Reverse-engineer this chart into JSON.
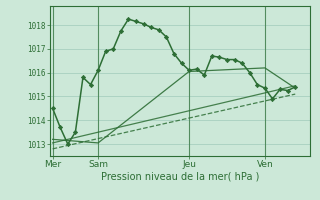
{
  "background_color": "#cce8d8",
  "grid_color": "#a8cfc0",
  "line_color": "#2d6e35",
  "marker_color": "#2d6e35",
  "title": "Pression niveau de la mer( hPa )",
  "ylim": [
    1012.5,
    1018.8
  ],
  "yticks": [
    1013,
    1014,
    1015,
    1016,
    1017,
    1018
  ],
  "day_labels": [
    "Mer",
    "Sam",
    "Jeu",
    "Ven"
  ],
  "day_positions": [
    0,
    3,
    9,
    14
  ],
  "xlim": [
    -0.2,
    17.0
  ],
  "series1_x": [
    0,
    0.5,
    1,
    1.5,
    2,
    2.5,
    3,
    3.5,
    4,
    4.5,
    5,
    5.5,
    6,
    6.5,
    7,
    7.5,
    8,
    8.5,
    9,
    9.5,
    10,
    10.5,
    11,
    11.5,
    12,
    12.5,
    13,
    13.5,
    14,
    14.5,
    15,
    15.5,
    16
  ],
  "series1_y": [
    1014.5,
    1013.7,
    1013.0,
    1013.5,
    1015.8,
    1015.5,
    1016.1,
    1016.9,
    1017.0,
    1017.75,
    1018.25,
    1018.15,
    1018.05,
    1017.9,
    1017.8,
    1017.5,
    1016.8,
    1016.4,
    1016.1,
    1016.15,
    1015.9,
    1016.7,
    1016.65,
    1016.55,
    1016.55,
    1016.4,
    1016.0,
    1015.5,
    1015.35,
    1014.9,
    1015.3,
    1015.25,
    1015.4
  ],
  "series2_x": [
    0,
    3,
    9,
    14,
    16
  ],
  "series2_y": [
    1013.2,
    1013.05,
    1016.05,
    1016.2,
    1015.35
  ],
  "series3_x": [
    0,
    16
  ],
  "series3_y": [
    1012.8,
    1015.1
  ],
  "series4_x": [
    0,
    16
  ],
  "series4_y": [
    1013.05,
    1015.45
  ]
}
